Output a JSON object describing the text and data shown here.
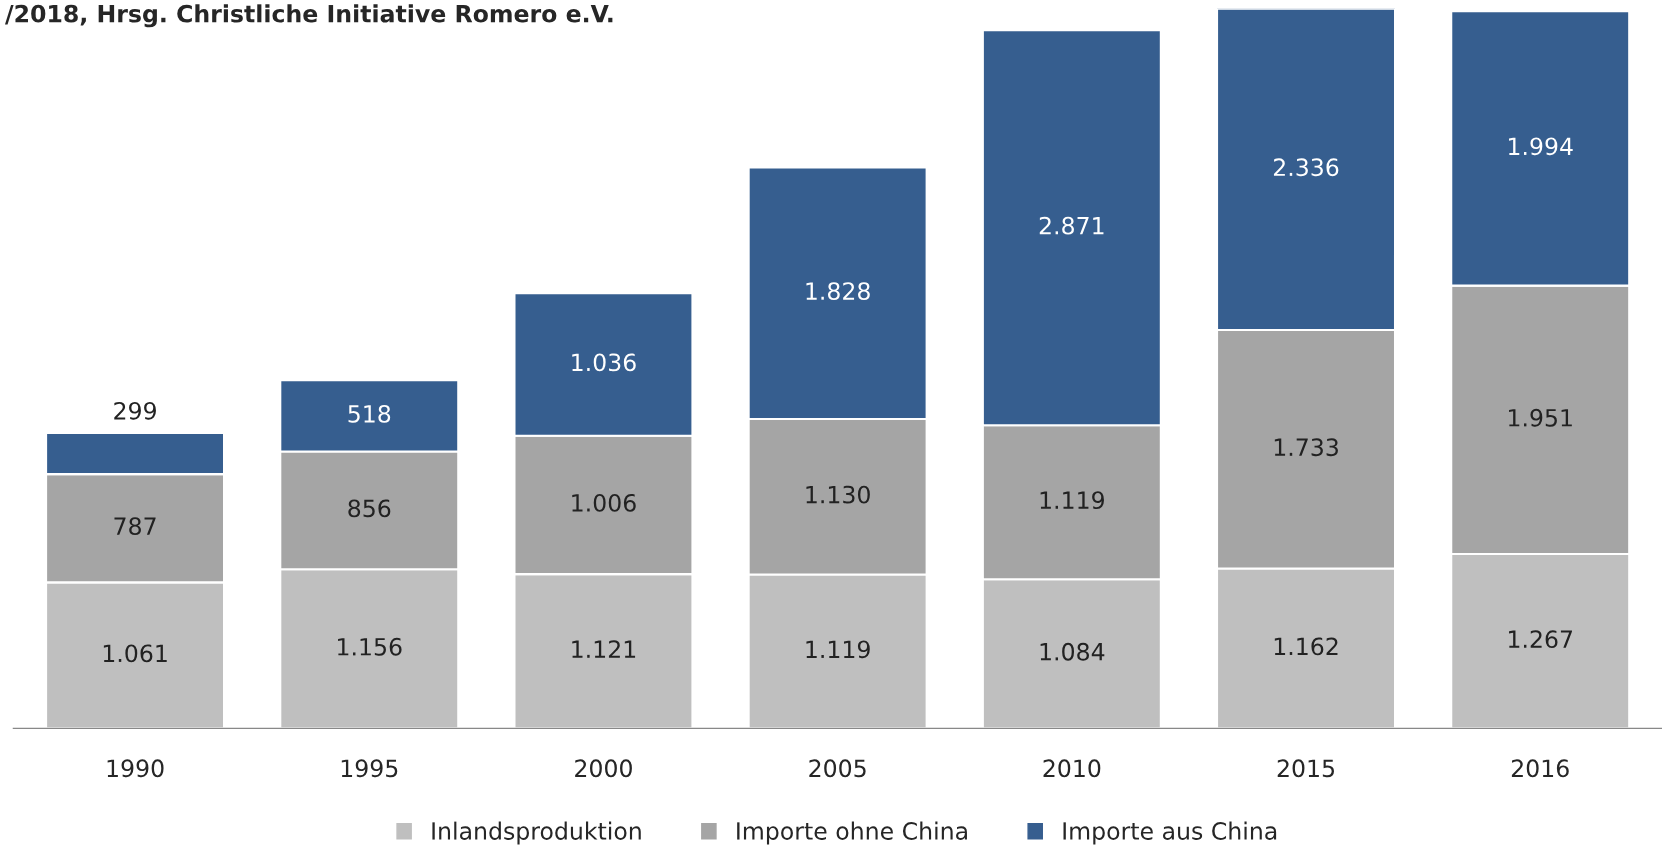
{
  "chart_data": {
    "type": "bar",
    "stacked": true,
    "annotations": [
      "/2018, Hrsg. Christliche Initiative Romero e.V."
    ],
    "categories": [
      "1990",
      "1995",
      "2000",
      "2005",
      "2010",
      "2015",
      "2016"
    ],
    "series": [
      {
        "name": "Inlandsproduktion",
        "color": "#bfbfbf",
        "values": [
          1061,
          1156,
          1121,
          1119,
          1084,
          1162,
          1267
        ],
        "value_labels": [
          "1.061",
          "1.156",
          "1.121",
          "1.119",
          "1.084",
          "1.162",
          "1.267"
        ]
      },
      {
        "name": "Importe ohne China",
        "color": "#a5a5a5",
        "values": [
          787,
          856,
          1006,
          1130,
          1119,
          1733,
          1951
        ],
        "value_labels": [
          "787",
          "856",
          "1.006",
          "1.130",
          "1.119",
          "1.733",
          "1.951"
        ]
      },
      {
        "name": "Importe aus China",
        "color": "#365e8f",
        "values": [
          299,
          518,
          1036,
          1828,
          2871,
          2336,
          1994
        ],
        "value_labels": [
          "299",
          "518",
          "1.036",
          "1.828",
          "2.871",
          "2.336",
          "1.994"
        ]
      }
    ],
    "legend": "bottom"
  }
}
